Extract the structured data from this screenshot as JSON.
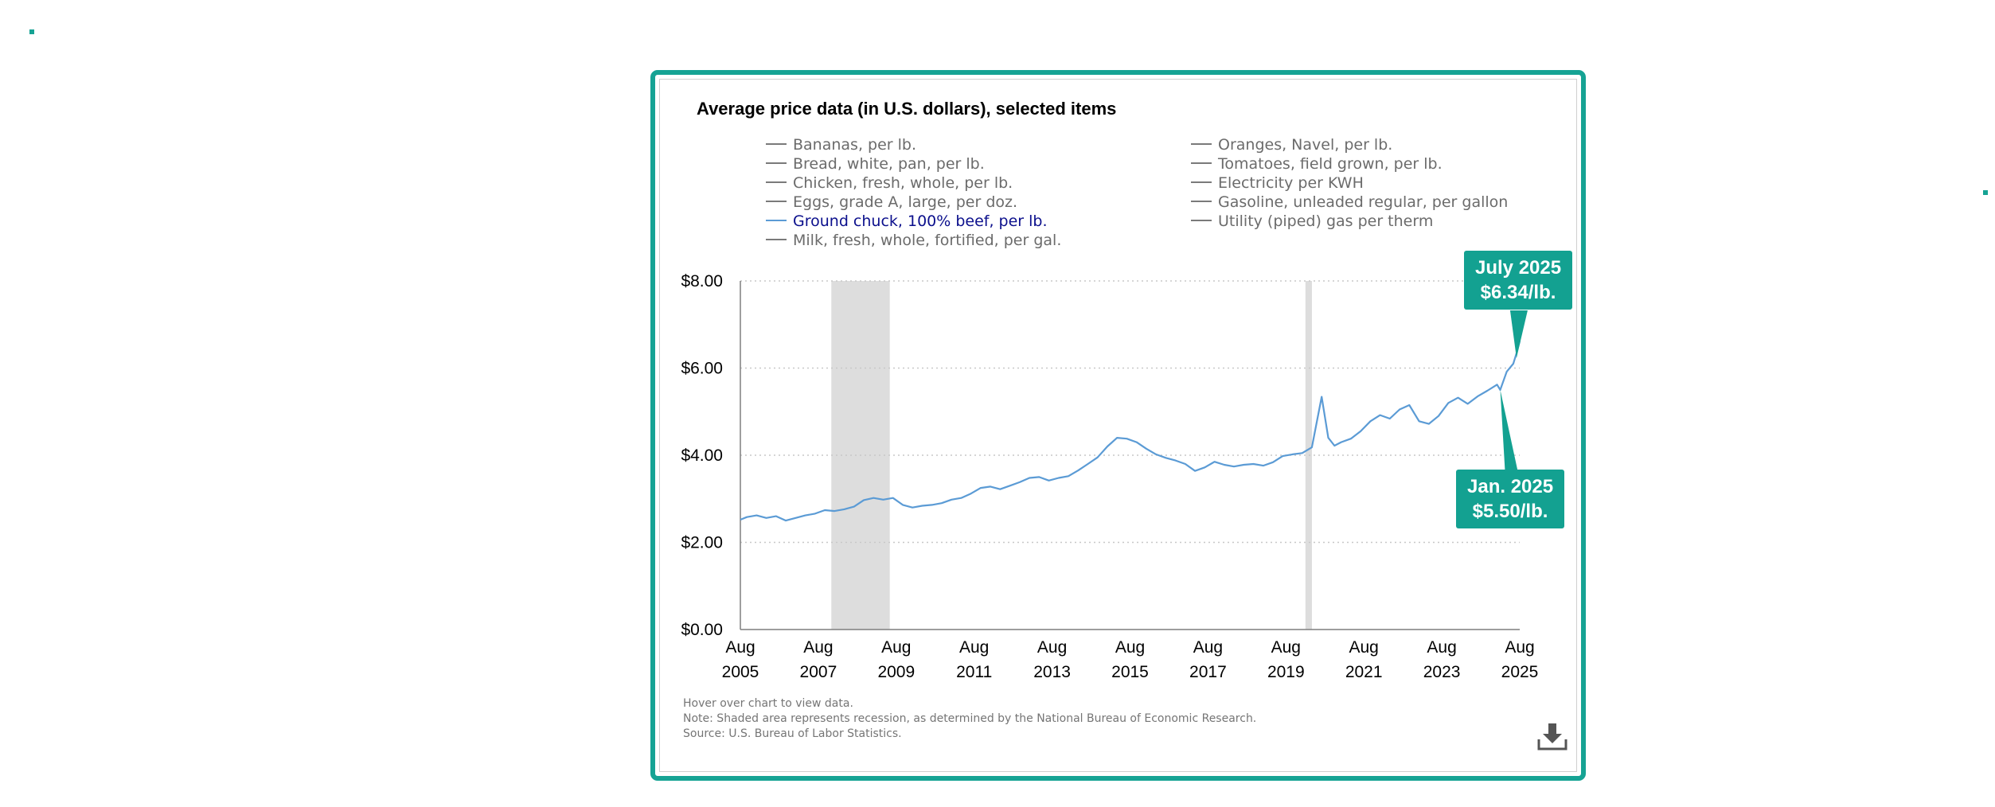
{
  "chart_data": {
    "type": "line",
    "title": "Average price data (in U.S. dollars), selected items",
    "legend": {
      "left": [
        {
          "label": "Bananas, per lb.",
          "active": false
        },
        {
          "label": "Bread, white, pan, per lb.",
          "active": false
        },
        {
          "label": "Chicken, fresh, whole, per lb.",
          "active": false
        },
        {
          "label": "Eggs, grade A, large, per doz.",
          "active": false
        },
        {
          "label": "Ground chuck, 100% beef, per lb.",
          "active": true
        },
        {
          "label": "Milk, fresh, whole, fortified, per gal.",
          "active": false
        }
      ],
      "right": [
        {
          "label": "Oranges, Navel, per lb.",
          "active": false
        },
        {
          "label": "Tomatoes, field grown, per lb.",
          "active": false
        },
        {
          "label": "Electricity per KWH",
          "active": false
        },
        {
          "label": "Gasoline, unleaded regular, per gallon",
          "active": false
        },
        {
          "label": "Utility (piped) gas per therm",
          "active": false
        }
      ]
    },
    "y_ticks": [
      {
        "value": 0,
        "label": "$0.00"
      },
      {
        "value": 2,
        "label": "$2.00"
      },
      {
        "value": 4,
        "label": "$4.00"
      },
      {
        "value": 6,
        "label": "$6.00"
      },
      {
        "value": 8,
        "label": "$8.00"
      }
    ],
    "ylim": [
      0,
      8
    ],
    "xlim": [
      2005.583,
      2025.583
    ],
    "x_ticks": [
      {
        "value": 2005.583,
        "month": "Aug",
        "year": "2005"
      },
      {
        "value": 2007.583,
        "month": "Aug",
        "year": "2007"
      },
      {
        "value": 2009.583,
        "month": "Aug",
        "year": "2009"
      },
      {
        "value": 2011.583,
        "month": "Aug",
        "year": "2011"
      },
      {
        "value": 2013.583,
        "month": "Aug",
        "year": "2013"
      },
      {
        "value": 2015.583,
        "month": "Aug",
        "year": "2015"
      },
      {
        "value": 2017.583,
        "month": "Aug",
        "year": "2017"
      },
      {
        "value": 2019.583,
        "month": "Aug",
        "year": "2019"
      },
      {
        "value": 2021.583,
        "month": "Aug",
        "year": "2021"
      },
      {
        "value": 2023.583,
        "month": "Aug",
        "year": "2023"
      },
      {
        "value": 2025.583,
        "month": "Aug",
        "year": "2025"
      }
    ],
    "recessions": [
      {
        "start": 2007.917,
        "end": 2009.417
      },
      {
        "start": 2020.083,
        "end": 2020.25
      }
    ],
    "series": [
      {
        "name": "Ground chuck, 100% beef, per lb.",
        "color": "#5b9bd5",
        "points": [
          [
            2005.583,
            2.52
          ],
          [
            2005.75,
            2.58
          ],
          [
            2006.0,
            2.62
          ],
          [
            2006.25,
            2.56
          ],
          [
            2006.5,
            2.6
          ],
          [
            2006.75,
            2.5
          ],
          [
            2007.0,
            2.56
          ],
          [
            2007.25,
            2.62
          ],
          [
            2007.5,
            2.66
          ],
          [
            2007.75,
            2.74
          ],
          [
            2008.0,
            2.72
          ],
          [
            2008.25,
            2.76
          ],
          [
            2008.5,
            2.82
          ],
          [
            2008.75,
            2.97
          ],
          [
            2009.0,
            3.02
          ],
          [
            2009.25,
            2.98
          ],
          [
            2009.5,
            3.02
          ],
          [
            2009.75,
            2.86
          ],
          [
            2010.0,
            2.8
          ],
          [
            2010.25,
            2.84
          ],
          [
            2010.5,
            2.86
          ],
          [
            2010.75,
            2.9
          ],
          [
            2011.0,
            2.98
          ],
          [
            2011.25,
            3.02
          ],
          [
            2011.5,
            3.12
          ],
          [
            2011.75,
            3.25
          ],
          [
            2012.0,
            3.28
          ],
          [
            2012.25,
            3.22
          ],
          [
            2012.5,
            3.3
          ],
          [
            2012.75,
            3.38
          ],
          [
            2013.0,
            3.48
          ],
          [
            2013.25,
            3.5
          ],
          [
            2013.5,
            3.42
          ],
          [
            2013.75,
            3.48
          ],
          [
            2014.0,
            3.52
          ],
          [
            2014.25,
            3.65
          ],
          [
            2014.5,
            3.8
          ],
          [
            2014.75,
            3.95
          ],
          [
            2015.0,
            4.2
          ],
          [
            2015.25,
            4.4
          ],
          [
            2015.5,
            4.38
          ],
          [
            2015.75,
            4.3
          ],
          [
            2016.0,
            4.15
          ],
          [
            2016.25,
            4.02
          ],
          [
            2016.5,
            3.94
          ],
          [
            2016.75,
            3.88
          ],
          [
            2017.0,
            3.8
          ],
          [
            2017.25,
            3.64
          ],
          [
            2017.5,
            3.72
          ],
          [
            2017.75,
            3.85
          ],
          [
            2018.0,
            3.78
          ],
          [
            2018.25,
            3.74
          ],
          [
            2018.5,
            3.78
          ],
          [
            2018.75,
            3.8
          ],
          [
            2019.0,
            3.76
          ],
          [
            2019.25,
            3.84
          ],
          [
            2019.5,
            3.98
          ],
          [
            2019.75,
            4.02
          ],
          [
            2020.0,
            4.05
          ],
          [
            2020.25,
            4.18
          ],
          [
            2020.5,
            5.34
          ],
          [
            2020.67,
            4.4
          ],
          [
            2020.83,
            4.22
          ],
          [
            2021.0,
            4.3
          ],
          [
            2021.25,
            4.38
          ],
          [
            2021.5,
            4.55
          ],
          [
            2021.75,
            4.78
          ],
          [
            2022.0,
            4.92
          ],
          [
            2022.25,
            4.84
          ],
          [
            2022.5,
            5.05
          ],
          [
            2022.75,
            5.15
          ],
          [
            2023.0,
            4.78
          ],
          [
            2023.25,
            4.72
          ],
          [
            2023.5,
            4.9
          ],
          [
            2023.75,
            5.2
          ],
          [
            2024.0,
            5.32
          ],
          [
            2024.25,
            5.18
          ],
          [
            2024.5,
            5.35
          ],
          [
            2024.75,
            5.48
          ],
          [
            2025.0,
            5.62
          ],
          [
            2025.083,
            5.5
          ],
          [
            2025.25,
            5.92
          ],
          [
            2025.417,
            6.1
          ],
          [
            2025.5,
            6.34
          ],
          [
            2025.583,
            6.62
          ]
        ]
      }
    ],
    "annotations": [
      {
        "line1": "July 2025",
        "line2": "$6.34/lb.",
        "x": 2025.5,
        "y": 6.34
      },
      {
        "line1": "Jan. 2025",
        "line2": "$5.50/lb.",
        "x": 2025.083,
        "y": 5.5
      }
    ]
  },
  "notes": [
    "Hover over chart to view data.",
    "Note: Shaded area represents recession, as determined by the National Bureau of Economic Research.",
    "Source: U.S. Bureau of Labor Statistics."
  ],
  "icons": {
    "download": "download-icon"
  },
  "colors": {
    "accent": "#16a394",
    "line": "#5b9bd5",
    "recession": "#dddddd",
    "legend_active": "#0b0f8c"
  }
}
